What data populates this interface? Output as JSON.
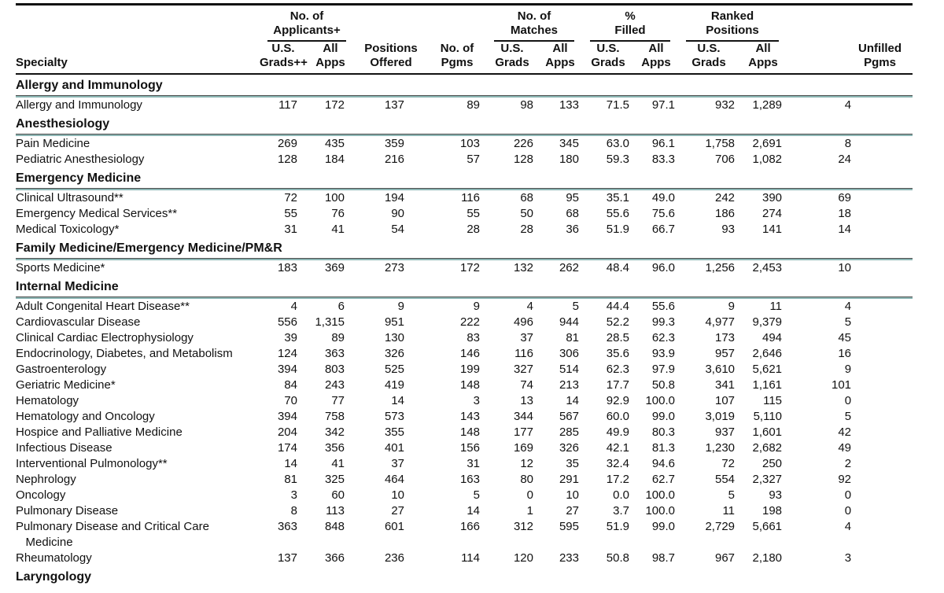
{
  "colors": {
    "accent_teal": "#8cb6b4",
    "rule_top": "#4f4f4f",
    "line_black": "#121212"
  },
  "header": {
    "specialty": "Specialty",
    "groups": {
      "applicants": "No. of\nApplicants+",
      "matches": "No. of\nMatches",
      "filled": "%\nFilled",
      "ranked": "Ranked\nPositions"
    },
    "cols": {
      "us_grads_pp": "U.S.\nGrads++",
      "all_apps": "All\nApps",
      "us_grads": "U.S.\nGrads",
      "positions_offered": "Positions\nOffered",
      "no_of_pgms": "No. of\nPgms",
      "unfilled_pgms": "Unfilled\nPgms"
    }
  },
  "sections": [
    {
      "title": "Allergy and Immunology",
      "rows": [
        {
          "name": "Allergy and Immunology",
          "values": [
            "117",
            "172",
            "137",
            "89",
            "98",
            "133",
            "71.5",
            "97.1",
            "932",
            "1,289",
            "4"
          ]
        }
      ]
    },
    {
      "title": "Anesthesiology",
      "rows": [
        {
          "name": "Pain Medicine",
          "values": [
            "269",
            "435",
            "359",
            "103",
            "226",
            "345",
            "63.0",
            "96.1",
            "1,758",
            "2,691",
            "8"
          ]
        },
        {
          "name": "Pediatric Anesthesiology",
          "values": [
            "128",
            "184",
            "216",
            "57",
            "128",
            "180",
            "59.3",
            "83.3",
            "706",
            "1,082",
            "24"
          ]
        }
      ]
    },
    {
      "title": "Emergency Medicine",
      "rows": [
        {
          "name": "Clinical Ultrasound**",
          "values": [
            "72",
            "100",
            "194",
            "116",
            "68",
            "95",
            "35.1",
            "49.0",
            "242",
            "390",
            "69"
          ]
        },
        {
          "name": "Emergency Medical Services**",
          "values": [
            "55",
            "76",
            "90",
            "55",
            "50",
            "68",
            "55.6",
            "75.6",
            "186",
            "274",
            "18"
          ]
        },
        {
          "name": "Medical Toxicology*",
          "values": [
            "31",
            "41",
            "54",
            "28",
            "28",
            "36",
            "51.9",
            "66.7",
            "93",
            "141",
            "14"
          ]
        }
      ]
    },
    {
      "title": "Family Medicine/Emergency Medicine/PM&R",
      "rows": [
        {
          "name": "Sports Medicine*",
          "values": [
            "183",
            "369",
            "273",
            "172",
            "132",
            "262",
            "48.4",
            "96.0",
            "1,256",
            "2,453",
            "10"
          ]
        }
      ]
    },
    {
      "title": "Internal Medicine",
      "rows": [
        {
          "name": "Adult Congenital Heart Disease**",
          "values": [
            "4",
            "6",
            "9",
            "9",
            "4",
            "5",
            "44.4",
            "55.6",
            "9",
            "11",
            "4"
          ]
        },
        {
          "name": "Cardiovascular Disease",
          "values": [
            "556",
            "1,315",
            "951",
            "222",
            "496",
            "944",
            "52.2",
            "99.3",
            "4,977",
            "9,379",
            "5"
          ]
        },
        {
          "name": "Clinical Cardiac Electrophysiology",
          "values": [
            "39",
            "89",
            "130",
            "83",
            "37",
            "81",
            "28.5",
            "62.3",
            "173",
            "494",
            "45"
          ]
        },
        {
          "name": "Endocrinology, Diabetes, and Metabolism",
          "values": [
            "124",
            "363",
            "326",
            "146",
            "116",
            "306",
            "35.6",
            "93.9",
            "957",
            "2,646",
            "16"
          ]
        },
        {
          "name": "Gastroenterology",
          "values": [
            "394",
            "803",
            "525",
            "199",
            "327",
            "514",
            "62.3",
            "97.9",
            "3,610",
            "5,621",
            "9"
          ]
        },
        {
          "name": "Geriatric Medicine*",
          "values": [
            "84",
            "243",
            "419",
            "148",
            "74",
            "213",
            "17.7",
            "50.8",
            "341",
            "1,161",
            "101"
          ]
        },
        {
          "name": "Hematology",
          "values": [
            "70",
            "77",
            "14",
            "3",
            "13",
            "14",
            "92.9",
            "100.0",
            "107",
            "115",
            "0"
          ]
        },
        {
          "name": "Hematology and Oncology",
          "values": [
            "394",
            "758",
            "573",
            "143",
            "344",
            "567",
            "60.0",
            "99.0",
            "3,019",
            "5,110",
            "5"
          ]
        },
        {
          "name": "Hospice and Palliative Medicine",
          "values": [
            "204",
            "342",
            "355",
            "148",
            "177",
            "285",
            "49.9",
            "80.3",
            "937",
            "1,601",
            "42"
          ]
        },
        {
          "name": "Infectious Disease",
          "values": [
            "174",
            "356",
            "401",
            "156",
            "169",
            "326",
            "42.1",
            "81.3",
            "1,230",
            "2,682",
            "49"
          ]
        },
        {
          "name": "Interventional Pulmonology**",
          "values": [
            "14",
            "41",
            "37",
            "31",
            "12",
            "35",
            "32.4",
            "94.6",
            "72",
            "250",
            "2"
          ]
        },
        {
          "name": "Nephrology",
          "values": [
            "81",
            "325",
            "464",
            "163",
            "80",
            "291",
            "17.2",
            "62.7",
            "554",
            "2,327",
            "92"
          ]
        },
        {
          "name": "Oncology",
          "values": [
            "3",
            "60",
            "10",
            "5",
            "0",
            "10",
            "0.0",
            "100.0",
            "5",
            "93",
            "0"
          ]
        },
        {
          "name": "Pulmonary Disease",
          "values": [
            "8",
            "113",
            "27",
            "14",
            "1",
            "27",
            "3.7",
            "100.0",
            "11",
            "198",
            "0"
          ]
        },
        {
          "name": "Pulmonary Disease and Critical Care\n   Medicine",
          "values": [
            "363",
            "848",
            "601",
            "166",
            "312",
            "595",
            "51.9",
            "99.0",
            "2,729",
            "5,661",
            "4"
          ]
        },
        {
          "name": "Rheumatology",
          "values": [
            "137",
            "366",
            "236",
            "114",
            "120",
            "233",
            "50.8",
            "98.7",
            "967",
            "2,180",
            "3"
          ]
        }
      ]
    },
    {
      "title": "Laryngology",
      "rows": []
    }
  ]
}
